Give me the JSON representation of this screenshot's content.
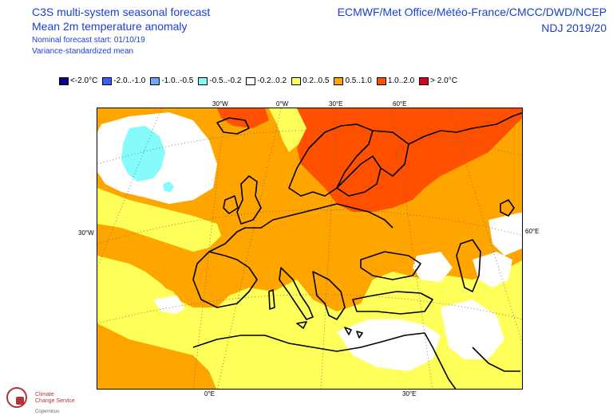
{
  "header": {
    "title": "C3S multi-system seasonal forecast",
    "subtitle": "Mean 2m temperature anomaly",
    "start": "Nominal forecast start: 01/10/19",
    "method": "Variance-standardized mean",
    "centres": "ECMWF/Met Office/Météo-France/CMCC/DWD/NCEP",
    "period": "NDJ 2019/20"
  },
  "legend": [
    {
      "label": "<-2.0°C",
      "color": "#00008b"
    },
    {
      "label": "-2.0..-1.0",
      "color": "#3a5ff0"
    },
    {
      "label": "-1.0..-0.5",
      "color": "#6fa8ff"
    },
    {
      "label": "-0.5..-0.2",
      "color": "#85fbfb"
    },
    {
      "label": "-0.2..0.2",
      "color": "#ffffff"
    },
    {
      "label": "0.2..0.5",
      "color": "#ffff5a"
    },
    {
      "label": "0.5..1.0",
      "color": "#ffa500"
    },
    {
      "label": "1.0..2.0",
      "color": "#ff5000"
    },
    {
      "label": "> 2.0°C",
      "color": "#d60025"
    }
  ],
  "axis_labels": {
    "top_30w": "30°W",
    "top_0e": "0°W",
    "top_30e": "30°E",
    "top_60e": "60°E",
    "left_30w": "30°W",
    "right_60e": "60°E",
    "bottom_0e": "0°E",
    "bottom_30e": "30°E"
  },
  "logo": {
    "line1": "Climate",
    "line2": "Change Service",
    "line3": "Copernicus"
  }
}
